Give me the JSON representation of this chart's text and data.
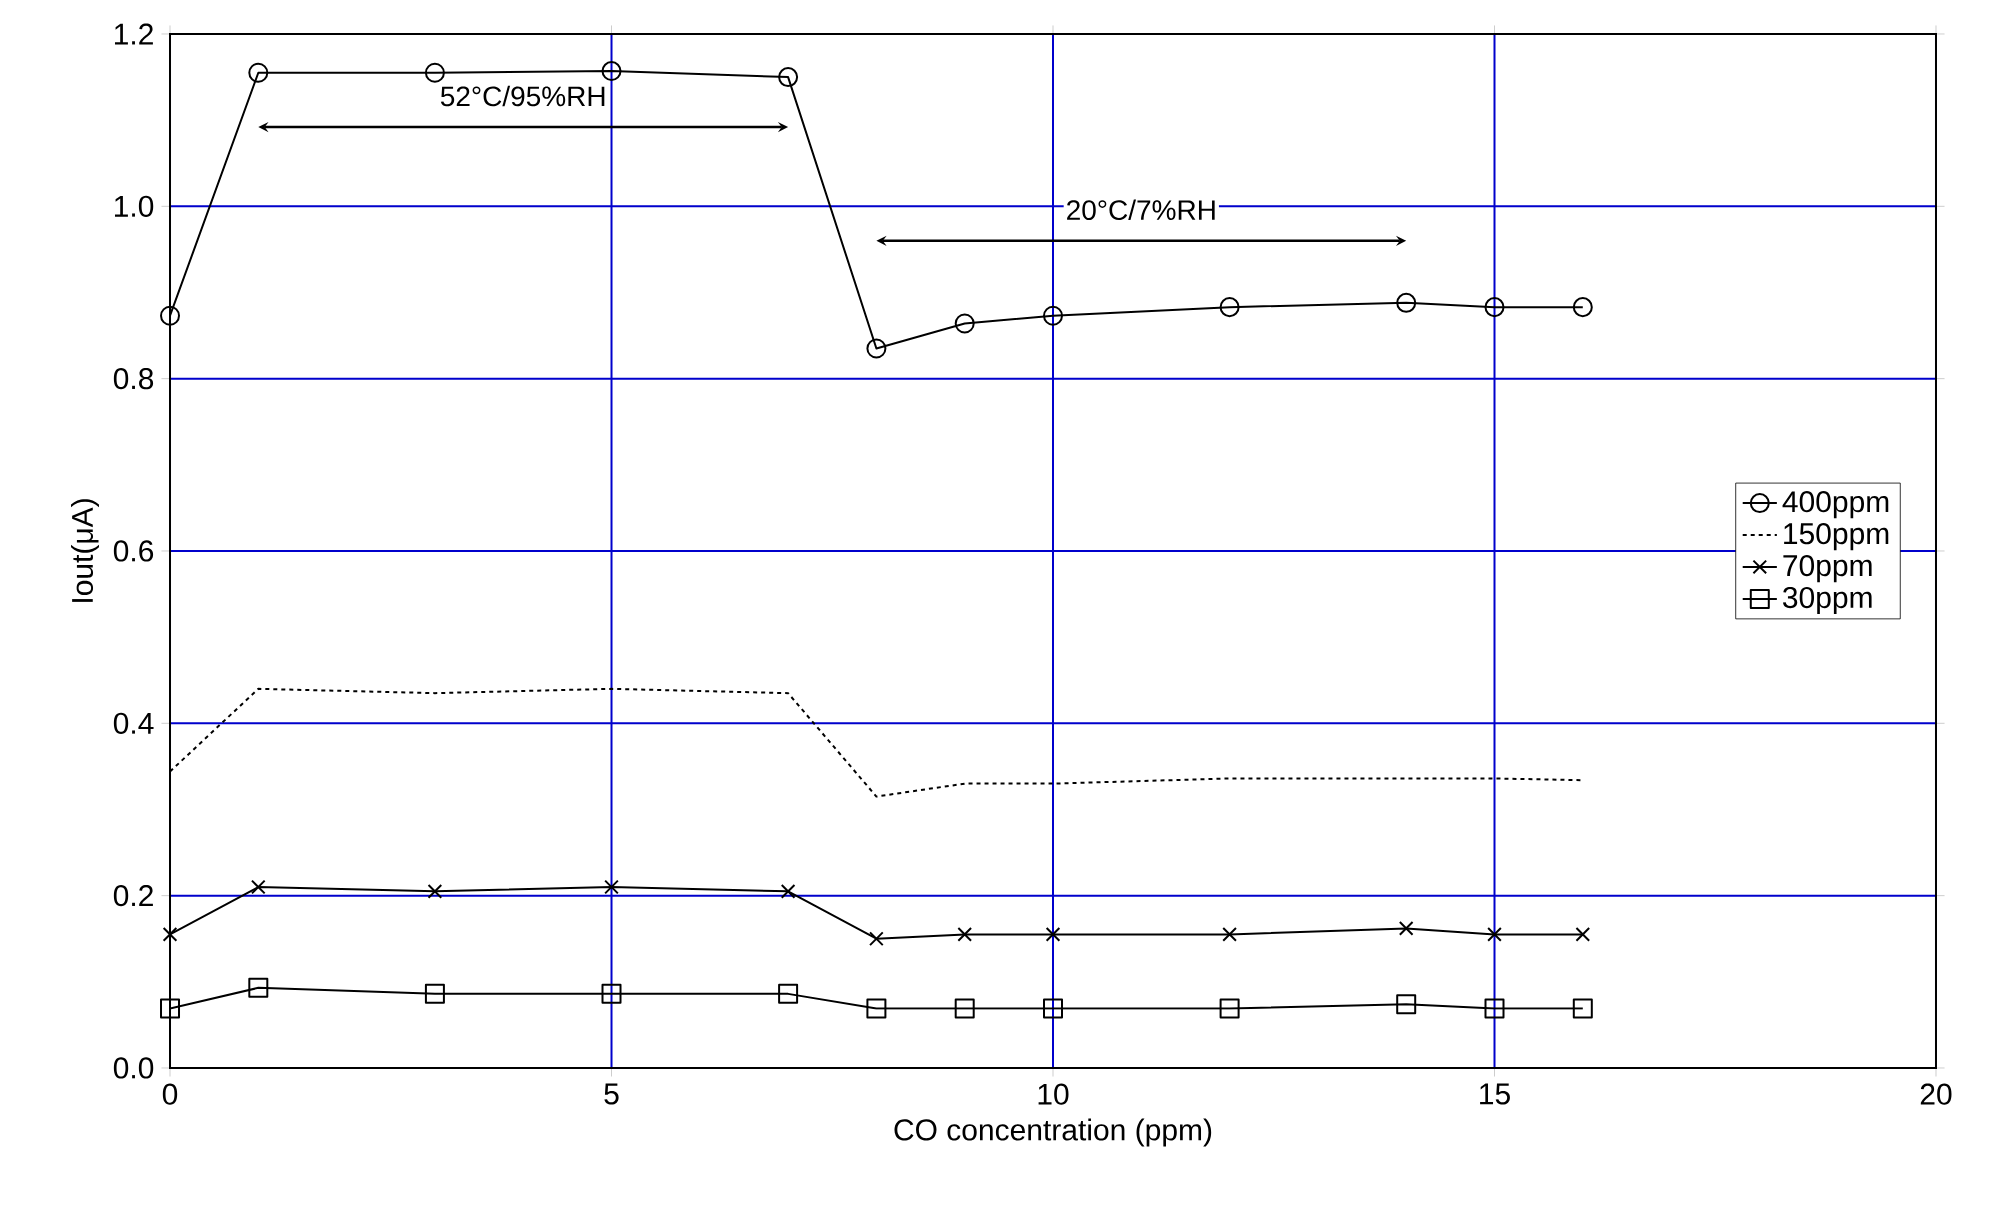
{
  "chart_data": {
    "type": "line",
    "xlabel": "CO concentration (ppm)",
    "ylabel": "Iout(μA)",
    "x": [
      0,
      1,
      3,
      5,
      7,
      8,
      9,
      10,
      12,
      14,
      15,
      16
    ],
    "series": [
      {
        "name": "400ppm",
        "color": "#000000",
        "marker": "circle",
        "line_style": "solid",
        "values": [
          0.873,
          1.155,
          1.155,
          1.157,
          1.15,
          0.835,
          0.864,
          0.873,
          0.883,
          0.888,
          0.883,
          0.883
        ]
      },
      {
        "name": "150ppm",
        "color": "#000000",
        "marker": "none",
        "line_style": "dashed",
        "values": [
          0.344,
          0.44,
          0.435,
          0.44,
          0.435,
          0.315,
          0.33,
          0.33,
          0.336,
          0.336,
          0.336,
          0.334
        ]
      },
      {
        "name": "70ppm",
        "color": "#000000",
        "marker": "cross",
        "line_style": "solid",
        "values": [
          0.155,
          0.21,
          0.205,
          0.21,
          0.205,
          0.15,
          0.155,
          0.155,
          0.155,
          0.162,
          0.155,
          0.155
        ]
      },
      {
        "name": "30ppm",
        "color": "#000000",
        "marker": "square",
        "line_style": "solid",
        "values": [
          0.069,
          0.093,
          0.086,
          0.086,
          0.086,
          0.069,
          0.069,
          0.069,
          0.069,
          0.074,
          0.069,
          0.069
        ]
      }
    ],
    "xlim": [
      0,
      20
    ],
    "xticks": [
      0,
      5,
      10,
      15,
      20
    ],
    "ylim": [
      0,
      1.2
    ],
    "yticks": [
      {
        "value": 0,
        "label": "0.0"
      },
      {
        "value": 0.2,
        "label": "0.2"
      },
      {
        "value": 0.4,
        "label": "0.4"
      },
      {
        "value": 0.6,
        "label": "0.6"
      },
      {
        "value": 0.8,
        "label": "0.8"
      },
      {
        "value": 1.0,
        "label": "1.0"
      },
      {
        "value": 1.2,
        "label": "1.2"
      }
    ],
    "annotations": [
      "52°C/95%RH",
      "20°C/7%RH"
    ],
    "grid": true,
    "legend": "right"
  }
}
